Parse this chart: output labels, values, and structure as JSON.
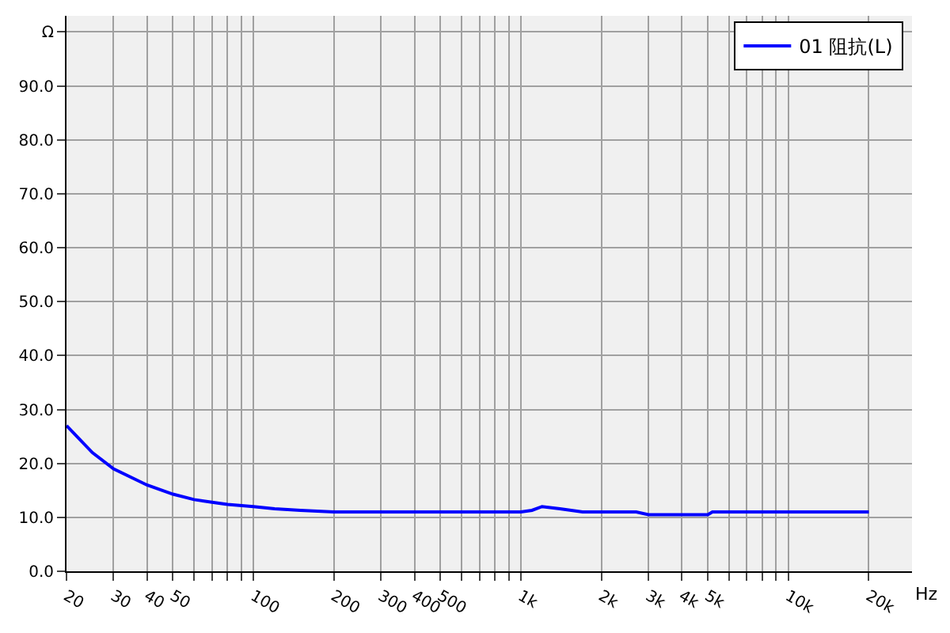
{
  "chart_data": {
    "type": "line",
    "xlabel": "Hz",
    "log": "x",
    "grid": true,
    "legend": "top right",
    "marker": "none",
    "line_style": "solid",
    "xlim": [
      20,
      29000
    ],
    "ylim": [
      0,
      103
    ],
    "xticks": [
      20,
      30,
      40,
      50,
      {
        "value": 60,
        "label": null
      },
      {
        "value": 70,
        "label": null
      },
      {
        "value": 80,
        "label": null
      },
      {
        "value": 90,
        "label": null
      },
      100,
      200,
      300,
      400,
      500,
      {
        "value": 600,
        "label": null
      },
      {
        "value": 700,
        "label": null
      },
      {
        "value": 800,
        "label": null
      },
      {
        "value": 900,
        "label": null
      },
      {
        "value": 1000,
        "label": "1k"
      },
      {
        "value": 2000,
        "label": "2k"
      },
      {
        "value": 3000,
        "label": "3k"
      },
      {
        "value": 4000,
        "label": "4k"
      },
      {
        "value": 5000,
        "label": "5k"
      },
      {
        "value": 6000,
        "label": null
      },
      {
        "value": 7000,
        "label": null
      },
      {
        "value": 8000,
        "label": null
      },
      {
        "value": 9000,
        "label": null
      },
      {
        "value": 10000,
        "label": "10k"
      },
      {
        "value": 20000,
        "label": "20k"
      }
    ],
    "yticks": [
      {
        "value": 0,
        "label": "0.0"
      },
      {
        "value": 10,
        "label": "10.0"
      },
      {
        "value": 20,
        "label": "20.0"
      },
      {
        "value": 30,
        "label": "30.0"
      },
      {
        "value": 40,
        "label": "40.0"
      },
      {
        "value": 50,
        "label": "50.0"
      },
      {
        "value": 60,
        "label": "60.0"
      },
      {
        "value": 70,
        "label": "70.0"
      },
      {
        "value": 80,
        "label": "80.0"
      },
      {
        "value": 90,
        "label": "90.0"
      },
      {
        "value": 100,
        "label": "Ω"
      }
    ],
    "series": [
      {
        "name": "01 阻抗(L)",
        "color": "#0000ff",
        "x": [
          20,
          25,
          30,
          40,
          50,
          60,
          70,
          80,
          100,
          120,
          150,
          200,
          500,
          1000,
          1100,
          1200,
          1400,
          1700,
          2000,
          2700,
          3000,
          5000,
          5200,
          10000,
          20000
        ],
        "values": [
          27,
          22,
          19,
          16,
          14.3,
          13.3,
          12.8,
          12.4,
          12,
          11.6,
          11.3,
          11,
          11,
          11,
          11.3,
          12,
          11.6,
          11,
          11,
          11,
          10.5,
          10.5,
          11,
          11,
          11
        ]
      }
    ]
  }
}
